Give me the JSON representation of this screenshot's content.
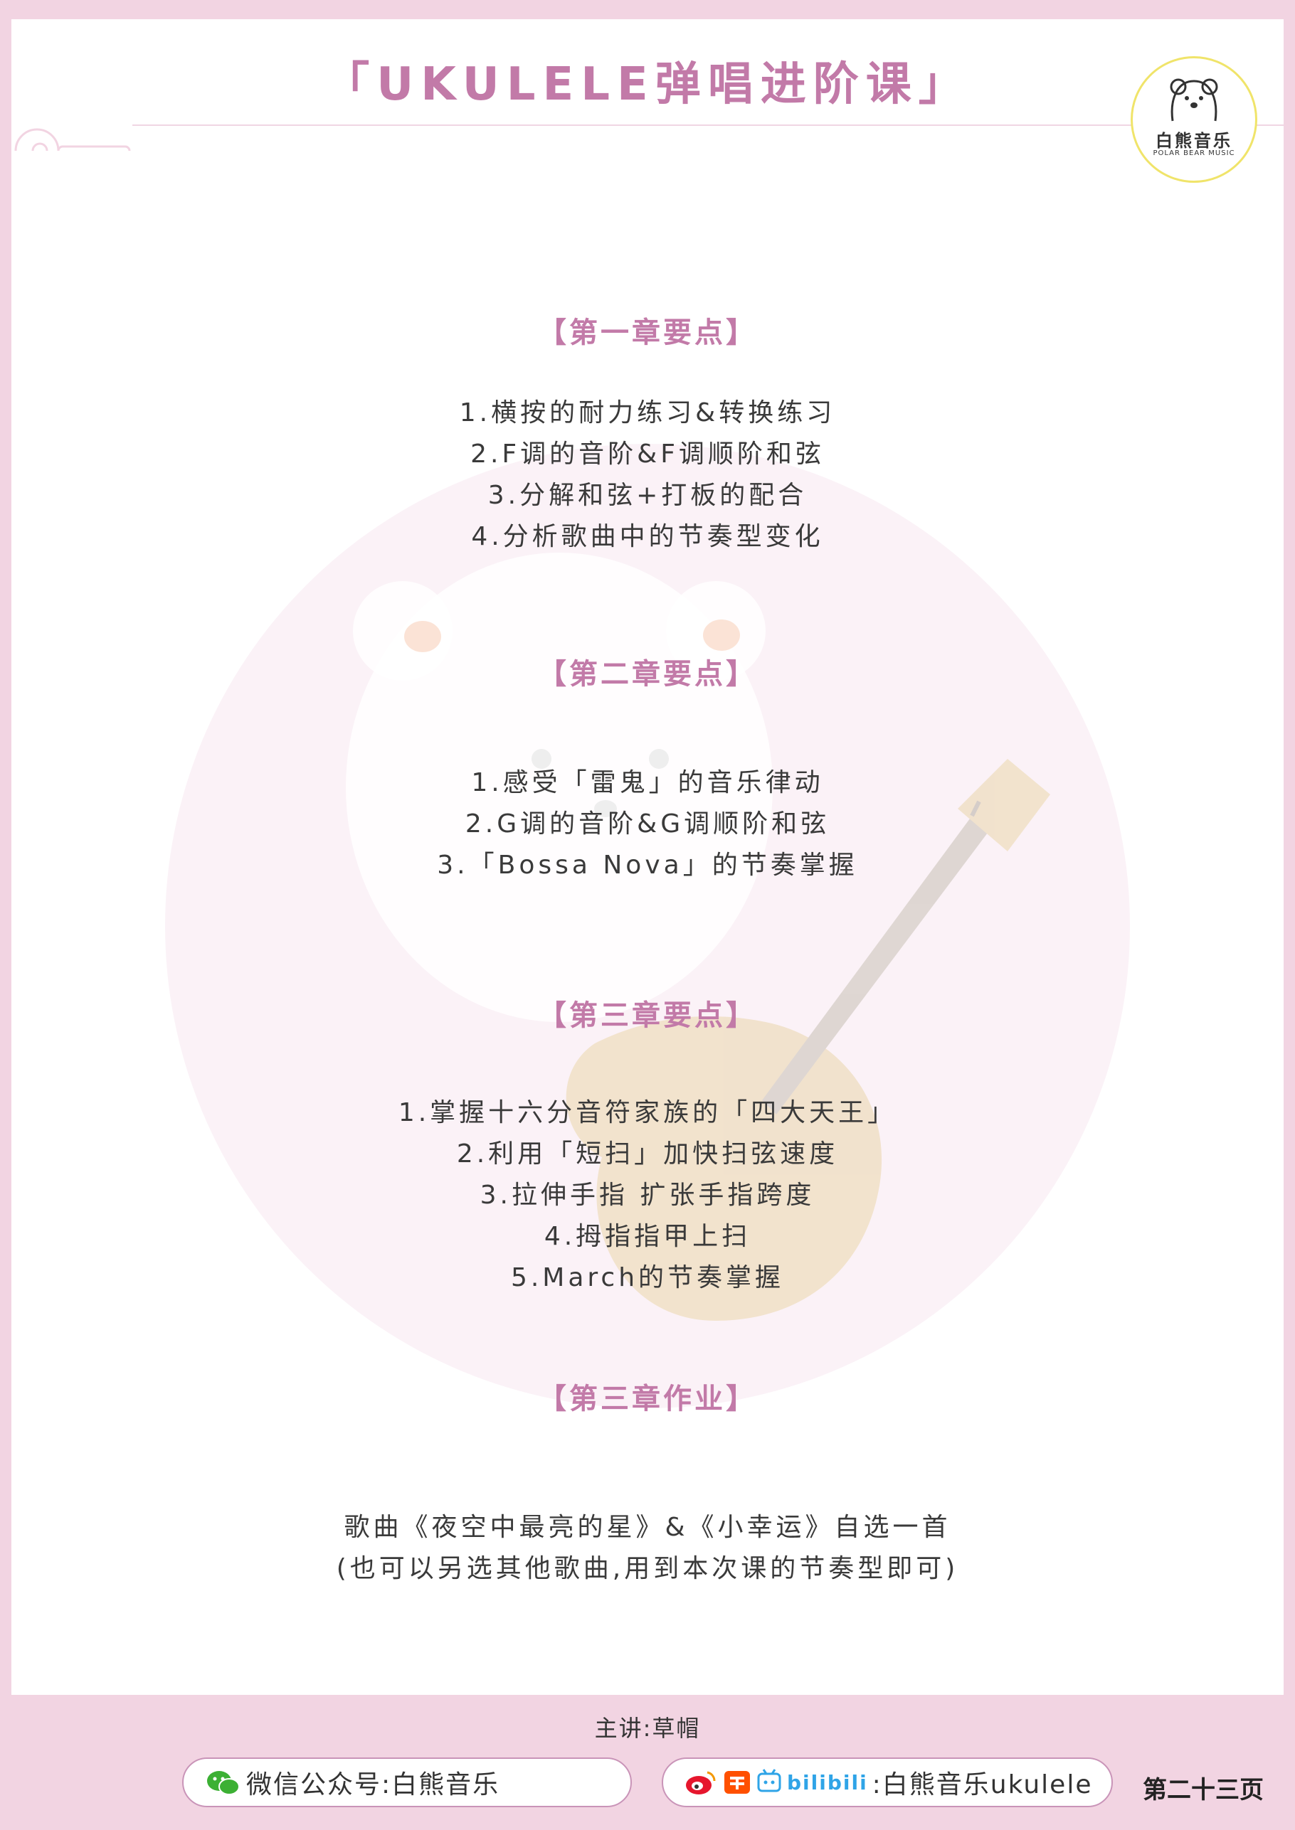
{
  "header": {
    "title": "「UKULELE弹唱进阶课」",
    "logo_name": "白熊音乐",
    "logo_subtitle": "POLAR BEAR MUSIC"
  },
  "sections": [
    {
      "heading": "【第一章要点】",
      "lines": [
        "1.横按的耐力练习&转换练习",
        "2.F调的音阶&F调顺阶和弦",
        "3.分解和弦+打板的配合",
        "4.分析歌曲中的节奏型变化"
      ]
    },
    {
      "heading": "【第二章要点】",
      "lines": [
        "1.感受「雷鬼」的音乐律动",
        "2.G调的音阶&G调顺阶和弦",
        "3.「Bossa Nova」的节奏掌握"
      ]
    },
    {
      "heading": "【第三章要点】",
      "lines": [
        "1.掌握十六分音符家族的「四大天王」",
        "2.利用「短扫」加快扫弦速度",
        "3.拉伸手指 扩张手指跨度",
        "4.拇指指甲上扫",
        "5.March的节奏掌握"
      ]
    },
    {
      "heading": "【第三章作业】",
      "lines": [
        "歌曲《夜空中最亮的星》&《小幸运》自选一首",
        "(也可以另选其他歌曲,用到本次课的节奏型即可)"
      ]
    }
  ],
  "footer": {
    "lecturer": "主讲:草帽",
    "wechat_label": "微信公众号:白熊音乐",
    "social_label": ":白熊音乐ukulele",
    "bilibili_text": "bilibili",
    "page_number": "第二十三页"
  },
  "colors": {
    "accent": "#c27aa8",
    "background_band": "#f2d4e2",
    "logo_ring": "#f0e46a"
  },
  "icons": [
    "ukulele-icon",
    "polar-bear-logo",
    "wechat-icon",
    "weibo-icon",
    "taobao-icon",
    "bilibili-icon"
  ]
}
